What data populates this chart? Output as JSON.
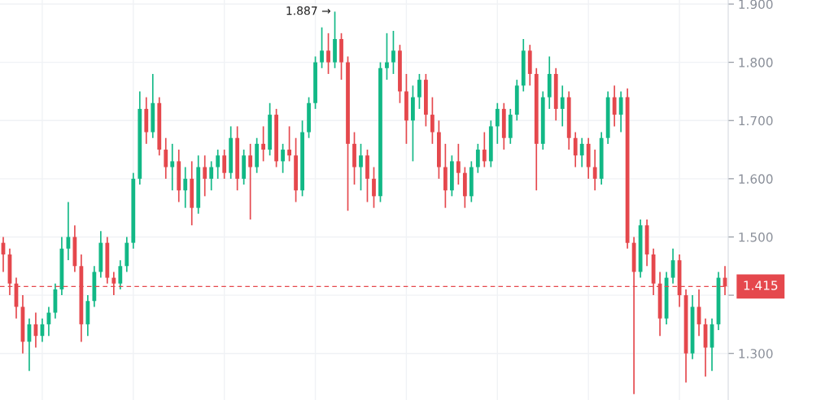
{
  "chart_data": {
    "type": "candlestick",
    "categories": [
      null,
      null,
      null,
      null,
      null,
      null,
      null,
      null,
      null,
      null,
      null,
      null,
      null,
      null,
      null,
      null,
      null,
      null,
      null,
      null,
      null,
      null,
      null,
      null,
      null,
      null,
      null,
      null,
      null,
      null,
      null,
      null,
      null,
      null,
      null,
      null,
      null,
      null,
      null,
      null,
      null,
      null,
      null,
      null,
      null,
      null,
      null,
      null,
      null,
      null,
      null,
      null,
      null,
      null,
      null,
      null,
      null,
      null,
      null,
      null,
      null,
      null,
      null,
      null,
      null,
      null,
      null,
      null,
      null,
      null,
      null,
      null,
      null,
      null,
      null,
      null,
      null,
      null,
      null,
      null,
      null,
      null,
      null,
      null,
      null,
      null,
      null,
      null,
      null,
      null,
      null,
      null,
      null,
      null,
      null,
      null,
      null,
      null,
      null,
      null,
      null,
      null,
      null,
      null,
      null,
      null,
      null,
      null,
      null,
      null,
      null,
      null
    ],
    "ohlc": [
      [
        1.49,
        1.5,
        1.44,
        1.47
      ],
      [
        1.47,
        1.48,
        1.4,
        1.42
      ],
      [
        1.42,
        1.43,
        1.36,
        1.38
      ],
      [
        1.38,
        1.4,
        1.3,
        1.32
      ],
      [
        1.32,
        1.36,
        1.27,
        1.35
      ],
      [
        1.35,
        1.37,
        1.31,
        1.33
      ],
      [
        1.33,
        1.36,
        1.32,
        1.35
      ],
      [
        1.35,
        1.38,
        1.33,
        1.37
      ],
      [
        1.37,
        1.42,
        1.36,
        1.41
      ],
      [
        1.41,
        1.5,
        1.4,
        1.48
      ],
      [
        1.48,
        1.56,
        1.46,
        1.5
      ],
      [
        1.5,
        1.52,
        1.44,
        1.45
      ],
      [
        1.45,
        1.47,
        1.32,
        1.35
      ],
      [
        1.35,
        1.4,
        1.33,
        1.39
      ],
      [
        1.39,
        1.45,
        1.38,
        1.44
      ],
      [
        1.44,
        1.51,
        1.43,
        1.49
      ],
      [
        1.49,
        1.5,
        1.42,
        1.43
      ],
      [
        1.43,
        1.44,
        1.4,
        1.42
      ],
      [
        1.42,
        1.46,
        1.41,
        1.45
      ],
      [
        1.45,
        1.5,
        1.44,
        1.49
      ],
      [
        1.49,
        1.61,
        1.48,
        1.6
      ],
      [
        1.6,
        1.75,
        1.59,
        1.72
      ],
      [
        1.72,
        1.74,
        1.66,
        1.68
      ],
      [
        1.68,
        1.78,
        1.67,
        1.73
      ],
      [
        1.73,
        1.74,
        1.64,
        1.65
      ],
      [
        1.65,
        1.67,
        1.6,
        1.62
      ],
      [
        1.62,
        1.66,
        1.58,
        1.63
      ],
      [
        1.63,
        1.65,
        1.56,
        1.58
      ],
      [
        1.58,
        1.62,
        1.55,
        1.6
      ],
      [
        1.6,
        1.63,
        1.52,
        1.55
      ],
      [
        1.55,
        1.64,
        1.54,
        1.62
      ],
      [
        1.62,
        1.64,
        1.57,
        1.6
      ],
      [
        1.6,
        1.63,
        1.58,
        1.62
      ],
      [
        1.62,
        1.65,
        1.6,
        1.64
      ],
      [
        1.64,
        1.65,
        1.6,
        1.61
      ],
      [
        1.61,
        1.69,
        1.6,
        1.67
      ],
      [
        1.67,
        1.69,
        1.58,
        1.6
      ],
      [
        1.6,
        1.65,
        1.59,
        1.64
      ],
      [
        1.64,
        1.66,
        1.53,
        1.62
      ],
      [
        1.62,
        1.67,
        1.61,
        1.66
      ],
      [
        1.66,
        1.69,
        1.63,
        1.65
      ],
      [
        1.65,
        1.73,
        1.64,
        1.71
      ],
      [
        1.71,
        1.72,
        1.62,
        1.63
      ],
      [
        1.63,
        1.66,
        1.61,
        1.65
      ],
      [
        1.65,
        1.69,
        1.63,
        1.64
      ],
      [
        1.64,
        1.67,
        1.56,
        1.58
      ],
      [
        1.58,
        1.7,
        1.57,
        1.68
      ],
      [
        1.68,
        1.74,
        1.67,
        1.73
      ],
      [
        1.73,
        1.81,
        1.72,
        1.8
      ],
      [
        1.8,
        1.86,
        1.79,
        1.82
      ],
      [
        1.82,
        1.85,
        1.78,
        1.8
      ],
      [
        1.8,
        1.887,
        1.79,
        1.84
      ],
      [
        1.84,
        1.85,
        1.77,
        1.8
      ],
      [
        1.8,
        1.81,
        1.545,
        1.66
      ],
      [
        1.66,
        1.68,
        1.59,
        1.62
      ],
      [
        1.62,
        1.66,
        1.58,
        1.64
      ],
      [
        1.64,
        1.65,
        1.56,
        1.6
      ],
      [
        1.6,
        1.62,
        1.55,
        1.57
      ],
      [
        1.57,
        1.8,
        1.56,
        1.79
      ],
      [
        1.79,
        1.85,
        1.77,
        1.8
      ],
      [
        1.8,
        1.854,
        1.78,
        1.82
      ],
      [
        1.82,
        1.83,
        1.73,
        1.75
      ],
      [
        1.75,
        1.78,
        1.66,
        1.7
      ],
      [
        1.7,
        1.76,
        1.63,
        1.74
      ],
      [
        1.74,
        1.78,
        1.72,
        1.77
      ],
      [
        1.77,
        1.78,
        1.69,
        1.71
      ],
      [
        1.71,
        1.74,
        1.66,
        1.68
      ],
      [
        1.68,
        1.7,
        1.6,
        1.62
      ],
      [
        1.62,
        1.66,
        1.55,
        1.58
      ],
      [
        1.58,
        1.64,
        1.57,
        1.63
      ],
      [
        1.63,
        1.66,
        1.59,
        1.61
      ],
      [
        1.61,
        1.62,
        1.55,
        1.57
      ],
      [
        1.57,
        1.63,
        1.56,
        1.62
      ],
      [
        1.62,
        1.66,
        1.61,
        1.65
      ],
      [
        1.65,
        1.68,
        1.62,
        1.63
      ],
      [
        1.63,
        1.7,
        1.62,
        1.69
      ],
      [
        1.69,
        1.73,
        1.66,
        1.72
      ],
      [
        1.72,
        1.73,
        1.65,
        1.67
      ],
      [
        1.67,
        1.72,
        1.66,
        1.71
      ],
      [
        1.71,
        1.77,
        1.7,
        1.76
      ],
      [
        1.76,
        1.84,
        1.75,
        1.82
      ],
      [
        1.82,
        1.83,
        1.76,
        1.78
      ],
      [
        1.78,
        1.79,
        1.58,
        1.66
      ],
      [
        1.66,
        1.75,
        1.65,
        1.74
      ],
      [
        1.74,
        1.81,
        1.72,
        1.78
      ],
      [
        1.78,
        1.79,
        1.7,
        1.72
      ],
      [
        1.72,
        1.76,
        1.69,
        1.74
      ],
      [
        1.74,
        1.75,
        1.65,
        1.67
      ],
      [
        1.67,
        1.68,
        1.62,
        1.64
      ],
      [
        1.64,
        1.67,
        1.62,
        1.66
      ],
      [
        1.66,
        1.67,
        1.6,
        1.62
      ],
      [
        1.62,
        1.65,
        1.58,
        1.6
      ],
      [
        1.6,
        1.68,
        1.59,
        1.67
      ],
      [
        1.67,
        1.75,
        1.66,
        1.74
      ],
      [
        1.74,
        1.76,
        1.69,
        1.71
      ],
      [
        1.71,
        1.75,
        1.68,
        1.74
      ],
      [
        1.74,
        1.755,
        1.48,
        1.49
      ],
      [
        1.49,
        1.5,
        1.23,
        1.44
      ],
      [
        1.44,
        1.53,
        1.43,
        1.52
      ],
      [
        1.52,
        1.53,
        1.45,
        1.47
      ],
      [
        1.47,
        1.48,
        1.4,
        1.42
      ],
      [
        1.42,
        1.44,
        1.33,
        1.36
      ],
      [
        1.36,
        1.44,
        1.35,
        1.43
      ],
      [
        1.43,
        1.48,
        1.42,
        1.46
      ],
      [
        1.46,
        1.47,
        1.38,
        1.4
      ],
      [
        1.4,
        1.41,
        1.25,
        1.3
      ],
      [
        1.3,
        1.4,
        1.29,
        1.38
      ],
      [
        1.38,
        1.41,
        1.33,
        1.35
      ],
      [
        1.35,
        1.36,
        1.26,
        1.31
      ],
      [
        1.31,
        1.36,
        1.27,
        1.35
      ],
      [
        1.35,
        1.44,
        1.34,
        1.43
      ],
      [
        1.43,
        1.45,
        1.4,
        1.415
      ]
    ],
    "colors": [
      "#e5484d",
      "#e5484d",
      "#e5484d",
      "#e5484d",
      "#12b886",
      "#e5484d",
      "#12b886",
      "#12b886",
      "#12b886",
      "#12b886",
      "#12b886",
      "#e5484d",
      "#e5484d",
      "#12b886",
      "#12b886",
      "#12b886",
      "#e5484d",
      "#e5484d",
      "#12b886",
      "#12b886",
      "#12b886",
      "#12b886",
      "#e5484d",
      "#12b886",
      "#e5484d",
      "#e5484d",
      "#12b886",
      "#e5484d",
      "#12b886",
      "#e5484d",
      "#12b886",
      "#e5484d",
      "#12b886",
      "#12b886",
      "#e5484d",
      "#12b886",
      "#e5484d",
      "#12b886",
      "#e5484d",
      "#12b886",
      "#e5484d",
      "#12b886",
      "#e5484d",
      "#12b886",
      "#e5484d",
      "#e5484d",
      "#12b886",
      "#12b886",
      "#12b886",
      "#12b886",
      "#e5484d",
      "#12b886",
      "#e5484d",
      "#e5484d",
      "#e5484d",
      "#12b886",
      "#e5484d",
      "#e5484d",
      "#12b886",
      "#12b886",
      "#12b886",
      "#e5484d",
      "#e5484d",
      "#12b886",
      "#12b886",
      "#e5484d",
      "#e5484d",
      "#e5484d",
      "#e5484d",
      "#12b886",
      "#e5484d",
      "#e5484d",
      "#12b886",
      "#12b886",
      "#e5484d",
      "#12b886",
      "#12b886",
      "#e5484d",
      "#12b886",
      "#12b886",
      "#12b886",
      "#e5484d",
      "#e5484d",
      "#12b886",
      "#12b886",
      "#e5484d",
      "#12b886",
      "#e5484d",
      "#e5484d",
      "#12b886",
      "#e5484d",
      "#e5484d",
      "#12b886",
      "#12b886",
      "#e5484d",
      "#12b886",
      "#e5484d",
      "#e5484d",
      "#12b886",
      "#e5484d",
      "#e5484d",
      "#e5484d",
      "#12b886",
      "#12b886",
      "#e5484d",
      "#e5484d",
      "#12b886",
      "#e5484d",
      "#e5484d",
      "#12b886",
      "#12b886",
      "#e5484d"
    ],
    "ylim": [
      1.22,
      1.907
    ],
    "yticks": [
      {
        "value": 1.3,
        "label": "1.300"
      },
      {
        "value": 1.4,
        "label": null
      },
      {
        "value": 1.5,
        "label": "1.500"
      },
      {
        "value": 1.6,
        "label": "1.600"
      },
      {
        "value": 1.7,
        "label": "1.700"
      },
      {
        "value": 1.8,
        "label": "1.800"
      },
      {
        "value": 1.9,
        "label": "1.900"
      }
    ],
    "annotations": [
      "1.887 →"
    ],
    "ref_lines": [
      {
        "axis": "y",
        "value": 1.415,
        "label": "1.415",
        "color": "#e5484d",
        "line_style": "dashed"
      }
    ],
    "grid": true,
    "tick_labels": "y"
  }
}
